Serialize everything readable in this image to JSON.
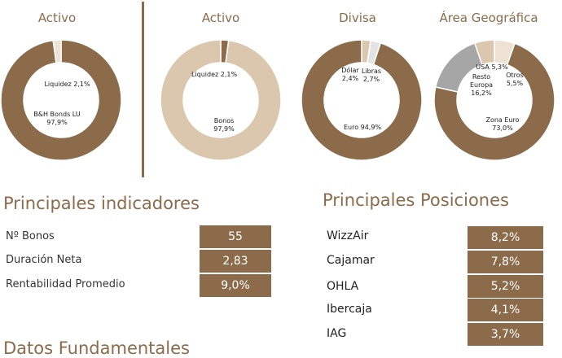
{
  "colors": {
    "brown": "#8b6b4a",
    "beige": "#dac7ad",
    "light": "#eee2d4",
    "grey": "#a6a6a6",
    "lightgrey": "#e3e3e3",
    "white": "#ffffff"
  },
  "charts": [
    {
      "title": "Activo",
      "slices": [
        {
          "name": "B&H Bonds LU",
          "value": 97.9,
          "color": "#8b6b4a"
        },
        {
          "name": "Liquidez",
          "value": 2.1,
          "color": "#eee2d4"
        }
      ],
      "labels": [
        {
          "text": "Liquidez 2,1%"
        },
        {
          "line1": "B&H Bonds LU",
          "line2": "97,9%"
        }
      ]
    },
    {
      "title": "Activo",
      "slices": [
        {
          "name": "Liquidez",
          "value": 2.1,
          "color": "#8b6b4a"
        },
        {
          "name": "Bonos",
          "value": 97.9,
          "color": "#dac7ad"
        }
      ],
      "labels": [
        {
          "text": "Liquidez 2,1%"
        },
        {
          "line1": "Bonos",
          "line2": "97,9%"
        }
      ]
    },
    {
      "title": "Divisa",
      "slices": [
        {
          "name": "Dólar",
          "value": 2.4,
          "color": "#dac7ad"
        },
        {
          "name": "Libras",
          "value": 2.7,
          "color": "#e3e3e3"
        },
        {
          "name": "Euro",
          "value": 94.9,
          "color": "#8b6b4a"
        }
      ],
      "labels": [
        {
          "line1": "Dólar",
          "line2": "2,4%"
        },
        {
          "line1": "Libras",
          "line2": "2,7%"
        },
        {
          "text": "Euro 94,9%"
        }
      ]
    },
    {
      "title": "Área Geográfica",
      "slices": [
        {
          "name": "Otros",
          "value": 5.5,
          "color": "#eee2d4"
        },
        {
          "name": "Zona Euro",
          "value": 73.0,
          "color": "#8b6b4a"
        },
        {
          "name": "Resto Europa",
          "value": 16.2,
          "color": "#a6a6a6"
        },
        {
          "name": "USA",
          "value": 5.3,
          "color": "#dac7ad"
        }
      ],
      "labels": [
        {
          "text": "USA 5,3%"
        },
        {
          "line1": "Resto",
          "line2": "Europa",
          "line3": "16,2%"
        },
        {
          "line1": "Otros",
          "line2": "5,5%"
        },
        {
          "line1": "Zona Euro",
          "line2": "73,0%"
        }
      ]
    }
  ],
  "indicators": {
    "title": "Principales indicadores",
    "items": [
      {
        "label": "Nº Bonos",
        "value": "55"
      },
      {
        "label": "Duración Neta",
        "value": "2,83"
      },
      {
        "label": "Rentabilidad Promedio",
        "value": "9,0%"
      }
    ]
  },
  "positions": {
    "title": "Principales Posiciones",
    "items": [
      {
        "label": "WizzAir",
        "value": "8,2%"
      },
      {
        "label": "Cajamar",
        "value": "7,8%"
      },
      {
        "label": "OHLA",
        "value": "5,2%"
      },
      {
        "label": "Ibercaja",
        "value": "4,1%"
      },
      {
        "label": "IAG",
        "value": "3,7%"
      }
    ]
  },
  "next_section": {
    "title": "Datos Fundamentales"
  }
}
